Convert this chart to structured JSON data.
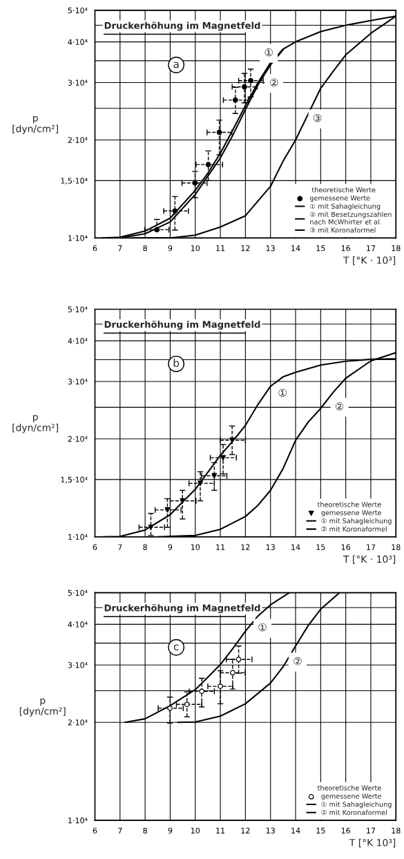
{
  "chart_data": [
    {
      "type": "line",
      "title": "Druckerhöhung im Magnetfeld",
      "xlabel": "T [°K · 10³]",
      "ylabel": "p\n[dyn/cm²]",
      "log": "y",
      "xlim": [
        6,
        18
      ],
      "ylim": [
        10000,
        50000
      ],
      "xticks": [
        6,
        7,
        8,
        9,
        10,
        11,
        12,
        13,
        14,
        15,
        16,
        17,
        18
      ],
      "yticks": [
        {
          "value": 10000,
          "label": "1·10⁴"
        },
        {
          "value": 15000,
          "label": "1,5·10⁴"
        },
        {
          "value": 20000,
          "label": "2·10⁴"
        },
        {
          "value": 25000,
          "label": null
        },
        {
          "value": 30000,
          "label": "3·10⁴"
        },
        {
          "value": 35000,
          "label": null
        },
        {
          "value": 40000,
          "label": "4·10⁴"
        },
        {
          "value": 45000,
          "label": null
        },
        {
          "value": 50000,
          "label": "5·10⁴"
        }
      ],
      "grid": true,
      "legend": "bottom right",
      "legend_title": "theoretische Werte",
      "annotations": [
        "a",
        {
          "text": "①",
          "x": 12.93,
          "y": 36900
        },
        {
          "text": "②",
          "x": 13.14,
          "y": 29800
        },
        {
          "text": "③",
          "x": 14.87,
          "y": 23200
        }
      ],
      "series": [
        {
          "type": "scatter",
          "name": "gemessene Werte",
          "color": "#000000",
          "marker": "circle",
          "x": [
            8.47,
            9.19,
            9.99,
            10.52,
            10.96,
            11.6,
            11.96,
            12.21
          ],
          "values": [
            10600,
            12100,
            14750,
            16800,
            21100,
            26500,
            29100,
            30400
          ],
          "xerrors": [
            [
              7.99,
              8.95
            ],
            [
              8.74,
              9.73
            ],
            [
              9.47,
              10.47
            ],
            [
              10.03,
              11.09
            ],
            [
              10.47,
              11.46
            ],
            [
              11.12,
              12.11
            ],
            [
              11.47,
              12.47
            ],
            [
              11.73,
              12.71
            ]
          ],
          "errors": [
            [
              10550,
              11400
            ],
            [
              10570,
              13400
            ],
            [
              13300,
              16000
            ],
            [
              15000,
              18500
            ],
            [
              18000,
              23000
            ],
            [
              24100,
              29000
            ],
            [
              26000,
              32000
            ],
            [
              27100,
              33000
            ]
          ]
        },
        {
          "name": "① mit Sahagleichung",
          "color": "#000000",
          "x": [
            6.3,
            7,
            8,
            9,
            10,
            10.5,
            11,
            11.5,
            12,
            12.5,
            13,
            13.5,
            14,
            15,
            16,
            17,
            18
          ],
          "values": [
            10000,
            10050,
            10500,
            11500,
            14000,
            15800,
            18200,
            21500,
            25500,
            30000,
            34500,
            38000,
            40000,
            43000,
            45000,
            46500,
            48000
          ]
        },
        {
          "name": "② mit Besetzungszahlen\nnach McWhirter et al.",
          "color": "#000000",
          "x": [
            7,
            8,
            9,
            10,
            11,
            11.5,
            12,
            12.5,
            13,
            13.5
          ],
          "values": [
            10000,
            10300,
            11200,
            13600,
            17600,
            20700,
            24800,
            29500,
            34000,
            37800
          ]
        },
        {
          "name": "③ mit Koronaformel",
          "color": "#000000",
          "x": [
            7.5,
            9,
            10,
            11,
            12,
            13,
            13.5,
            14,
            14.5,
            15,
            15.5,
            16,
            17,
            18
          ],
          "values": [
            10000,
            10000,
            10200,
            10800,
            11700,
            14400,
            17200,
            20000,
            24000,
            28800,
            32500,
            36500,
            42500,
            48000
          ]
        }
      ]
    },
    {
      "type": "line",
      "title": "Druckerhöhung im Magnetfeld",
      "xlabel": "T [°K · 10³]",
      "ylabel": "p\n[dyn/cm²]",
      "log": "y",
      "xlim": [
        6,
        18
      ],
      "ylim": [
        10000,
        50000
      ],
      "xticks": [
        6,
        7,
        8,
        9,
        10,
        11,
        12,
        13,
        14,
        15,
        16,
        17,
        18
      ],
      "yticks": [
        {
          "value": 10000,
          "label": "1·10⁴"
        },
        {
          "value": 15000,
          "label": "1,5·10⁴"
        },
        {
          "value": 20000,
          "label": "2·10⁴"
        },
        {
          "value": 25000,
          "label": null
        },
        {
          "value": 30000,
          "label": "3·10⁴"
        },
        {
          "value": 35000,
          "label": null
        },
        {
          "value": 40000,
          "label": "4·10⁴"
        },
        {
          "value": 45000,
          "label": null
        },
        {
          "value": 50000,
          "label": "5·10⁴"
        }
      ],
      "grid": true,
      "legend": "bottom right",
      "legend_title": "theoretische Werte",
      "annotations": [
        "b",
        {
          "text": "①",
          "x": 13.48,
          "y": 27500
        },
        {
          "text": "②",
          "x": 15.75,
          "y": 25000
        }
      ],
      "series": [
        {
          "type": "scatter",
          "name": "gemessene Werte",
          "color": "#000000",
          "marker": "triangle",
          "x": [
            8.23,
            8.89,
            9.49,
            10.2,
            10.76,
            11.11,
            11.47
          ],
          "values": [
            10700,
            12100,
            12900,
            14600,
            15400,
            17500,
            19800
          ],
          "xerrors": [
            [
              7.76,
              8.77
            ],
            [
              8.4,
              9.43
            ],
            [
              9.0,
              10.03
            ],
            [
              9.75,
              10.76
            ],
            [
              10.25,
              11.26
            ],
            [
              10.6,
              11.64
            ],
            [
              11.0,
              12.0
            ]
          ],
          "errors": [
            [
              10100,
              11800
            ],
            [
              10700,
              13100
            ],
            [
              11350,
              13900
            ],
            [
              12900,
              15850
            ],
            [
              13900,
              16900
            ],
            [
              15600,
              19200
            ],
            [
              17900,
              21900
            ]
          ]
        },
        {
          "name": "① mit Sahagleichung",
          "color": "#000000",
          "x": [
            6.3,
            7,
            8,
            9,
            10,
            11,
            11.5,
            12,
            12.5,
            13,
            13.5,
            14,
            15,
            16,
            17,
            18
          ],
          "values": [
            10000,
            10030,
            10500,
            11700,
            14000,
            17800,
            19700,
            22000,
            25500,
            29000,
            31000,
            32000,
            33700,
            34600,
            35100,
            35200
          ]
        },
        {
          "name": "② mit Koronaformel",
          "color": "#000000",
          "x": [
            8.5,
            10,
            11,
            12,
            12.5,
            13,
            13.5,
            14,
            14.5,
            15,
            15.5,
            16,
            17,
            18
          ],
          "values": [
            10000,
            10100,
            10550,
            11550,
            12500,
            13900,
            16200,
            19800,
            22500,
            24800,
            27800,
            30700,
            34700,
            36800
          ]
        }
      ]
    },
    {
      "type": "line",
      "title": "Druckerhöhung im Magnetfeld",
      "xlabel": "T [°K 10³]",
      "ylabel": "p\n[dyn/cm²]",
      "log": "y",
      "xlim": [
        6,
        18
      ],
      "ylim": [
        10000,
        50000
      ],
      "xticks": [
        6,
        7,
        8,
        9,
        10,
        11,
        12,
        13,
        14,
        15,
        16,
        17,
        18
      ],
      "yticks": [
        {
          "value": 10000,
          "label": "1·10⁴"
        },
        {
          "value": 20000,
          "label": "2·10⁴"
        },
        {
          "value": 25000,
          "label": null
        },
        {
          "value": 30000,
          "label": "3·10⁴"
        },
        {
          "value": 35000,
          "label": null
        },
        {
          "value": 40000,
          "label": "4·10⁴"
        },
        {
          "value": 45000,
          "label": null
        },
        {
          "value": 50000,
          "label": "5·10⁴"
        }
      ],
      "grid": true,
      "legend": "bottom right",
      "legend_title": "theoretische Werte",
      "annotations": [
        "c",
        {
          "text": "①",
          "x": 12.68,
          "y": 38900
        },
        {
          "text": "②",
          "x": 14.08,
          "y": 30600
        }
      ],
      "series": [
        {
          "type": "scatter",
          "name": "gemessene Werte",
          "color": "#000000",
          "marker": "circle_open",
          "x": [
            8.99,
            9.67,
            10.26,
            11.0,
            11.49,
            11.73
          ],
          "values": [
            22100,
            22700,
            24900,
            25800,
            28400,
            31200
          ],
          "xerrors": [
            [
              8.52,
              9.52
            ],
            [
              9.25,
              10.26
            ],
            [
              9.76,
              10.76
            ],
            [
              10.5,
              11.49
            ],
            [
              11.0,
              11.99
            ],
            [
              11.24,
              12.26
            ]
          ],
          "errors": [
            [
              19900,
              23900
            ],
            [
              20800,
              24800
            ],
            [
              22300,
              27300
            ],
            [
              22800,
              28800
            ],
            [
              25300,
              31200
            ],
            [
              28300,
              34300
            ]
          ]
        },
        {
          "name": "① mit Sahagleichung",
          "color": "#000000",
          "x": [
            7.2,
            8,
            9,
            10,
            10.5,
            11,
            11.5,
            12,
            12.5,
            13,
            13.75
          ],
          "values": [
            20000,
            20500,
            22500,
            25200,
            27500,
            30100,
            33700,
            38100,
            42400,
            45900,
            50000
          ]
        },
        {
          "name": "② mit Koronaformel",
          "color": "#000000",
          "x": [
            9.3,
            10,
            11,
            12,
            13,
            13.5,
            14,
            14.5,
            15,
            15.75
          ],
          "values": [
            20000,
            20050,
            20900,
            22800,
            26400,
            29600,
            34300,
            39600,
            44500,
            50000
          ]
        }
      ]
    }
  ]
}
